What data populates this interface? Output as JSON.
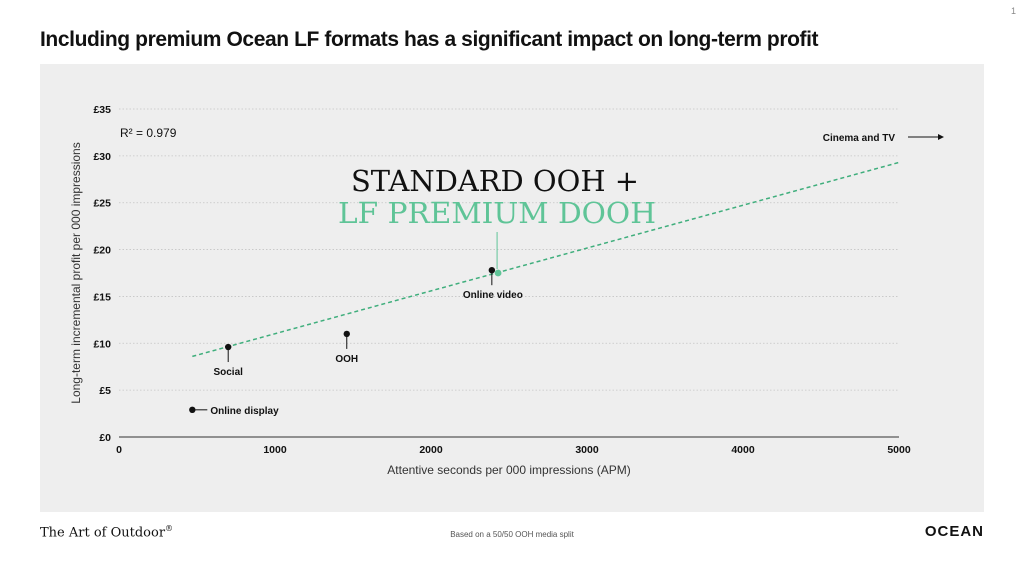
{
  "page_number": "1",
  "title": "Including premium Ocean LF formats has a significant impact on long-term profit",
  "footer": {
    "brand_left": "The Art of Outdoor",
    "brand_left_mark": "®",
    "note": "Based on a 50/50 OOH media split",
    "brand_right": "OCEAN"
  },
  "colors": {
    "accent": "#5fc497",
    "panel": "#eeeeee",
    "text": "#111111"
  },
  "chart_data": {
    "type": "scatter",
    "xlabel": "Attentive seconds per 000 impressions (APM)",
    "ylabel": "Long-term incremental profit per 000 impressions",
    "xlim": [
      0,
      5000
    ],
    "ylim": [
      0,
      35
    ],
    "x_ticks": [
      0,
      1000,
      2000,
      3000,
      4000,
      5000
    ],
    "y_ticks": [
      0,
      5,
      10,
      15,
      20,
      25,
      30,
      35
    ],
    "y_tick_labels": [
      "£0",
      "£5",
      "£10",
      "£15",
      "£20",
      "£25",
      "£30",
      "£35"
    ],
    "grid": true,
    "points": [
      {
        "label": "Online display",
        "x": 470,
        "y": 2.9
      },
      {
        "label": "Social",
        "x": 700,
        "y": 9.6
      },
      {
        "label": "OOH",
        "x": 1460,
        "y": 11.0
      },
      {
        "label": "Online video",
        "x": 2390,
        "y": 17.8
      }
    ],
    "highlight_point": {
      "x": 2430,
      "y": 17.5,
      "label_line1": "STANDARD OOH +",
      "label_line2": "LF PREMIUM DOOH"
    },
    "trendline": {
      "x1": 470,
      "y1": 8.6,
      "x2": 5000,
      "y2": 29.3,
      "r2_label": "R² = 0.979"
    },
    "off_chart_label": "Cinema and TV"
  }
}
